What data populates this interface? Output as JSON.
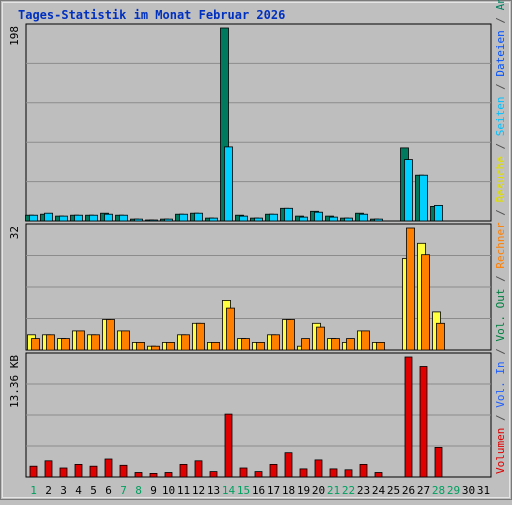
{
  "chart_data": {
    "type": "bar",
    "title": "Tages-Statistik im Monat Februar 2026",
    "categories": [
      "1",
      "2",
      "3",
      "4",
      "5",
      "6",
      "7",
      "8",
      "9",
      "10",
      "11",
      "12",
      "13",
      "14",
      "15",
      "16",
      "17",
      "18",
      "19",
      "20",
      "21",
      "22",
      "23",
      "24",
      "25",
      "26",
      "27",
      "28",
      "29",
      "30",
      "31"
    ],
    "weekend_days": [
      "1",
      "7",
      "8",
      "14",
      "15",
      "21",
      "22",
      "28",
      "29"
    ],
    "legend_right": [
      {
        "name": "Volumen",
        "color": "#e00000"
      },
      {
        "name": "/",
        "color": "#505050"
      },
      {
        "name": "Vol. In",
        "color": "#2060ff"
      },
      {
        "name": "/",
        "color": "#505050"
      },
      {
        "name": "Vol. Out",
        "color": "#008040"
      },
      {
        "name": "/",
        "color": "#505050"
      },
      {
        "name": "Rechner",
        "color": "#ff7f00"
      },
      {
        "name": "/",
        "color": "#505050"
      },
      {
        "name": "Besuche",
        "color": "#e0e000"
      },
      {
        "name": "/",
        "color": "#505050"
      },
      {
        "name": "Seiten",
        "color": "#00c0ff"
      },
      {
        "name": "/",
        "color": "#505050"
      },
      {
        "name": "Dateien",
        "color": "#0050ff"
      },
      {
        "name": "/",
        "color": "#505050"
      },
      {
        "name": "Anfragen",
        "color": "#008060"
      }
    ],
    "panels": [
      {
        "name": "requests",
        "ymax_label": "198",
        "ymax": 198,
        "series": [
          {
            "name": "Anfragen",
            "color": "#007a5e",
            "values": [
              6,
              7,
              5,
              6,
              6,
              8,
              6,
              2,
              1,
              2,
              7,
              8,
              3,
              198,
              6,
              3,
              7,
              13,
              5,
              10,
              5,
              3,
              8,
              2,
              0,
              75,
              47,
              15,
              0,
              0,
              0
            ]
          },
          {
            "name": "Seiten",
            "color": "#00d0ff",
            "values": [
              6,
              8,
              5,
              6,
              6,
              7,
              6,
              2,
              1,
              2,
              7,
              8,
              3,
              76,
              5,
              3,
              7,
              13,
              4,
              9,
              4,
              3,
              7,
              2,
              0,
              63,
              47,
              16,
              0,
              0,
              0
            ]
          },
          {
            "name": "Dateien",
            "color": "#0050ff",
            "values": [
              0,
              0,
              0,
              0,
              0,
              0,
              0,
              0,
              0,
              0,
              0,
              0,
              0,
              0,
              0,
              0,
              0,
              0,
              0,
              0,
              0,
              0,
              0,
              0,
              0,
              0,
              0,
              0,
              0,
              0,
              0
            ]
          }
        ]
      },
      {
        "name": "visits",
        "ymax_label": "32",
        "ymax": 32,
        "series": [
          {
            "name": "Besuche",
            "color": "#ffff40",
            "values": [
              4,
              4,
              3,
              5,
              4,
              8,
              5,
              2,
              1,
              2,
              4,
              7,
              2,
              13,
              3,
              2,
              4,
              8,
              1,
              7,
              3,
              2,
              5,
              2,
              0,
              24,
              28,
              10,
              0,
              0,
              0
            ]
          },
          {
            "name": "Rechner",
            "color": "#ff8000",
            "values": [
              3,
              4,
              3,
              5,
              4,
              8,
              5,
              2,
              1,
              2,
              4,
              7,
              2,
              11,
              3,
              2,
              4,
              8,
              3,
              6,
              3,
              3,
              5,
              2,
              0,
              32,
              25,
              7,
              0,
              0,
              0
            ]
          }
        ]
      },
      {
        "name": "volume",
        "ymax_label": "13.36 KB",
        "ymax": 13.36,
        "series": [
          {
            "name": "Volumen",
            "color": "#e00000",
            "values": [
              1.2,
              1.8,
              1.0,
              1.4,
              1.2,
              2.0,
              1.3,
              0.5,
              0.4,
              0.5,
              1.4,
              1.8,
              0.6,
              7.0,
              1.0,
              0.6,
              1.4,
              2.7,
              0.9,
              1.9,
              0.9,
              0.8,
              1.4,
              0.5,
              0,
              13.36,
              12.3,
              3.3,
              0,
              0,
              0
            ]
          }
        ]
      }
    ]
  }
}
